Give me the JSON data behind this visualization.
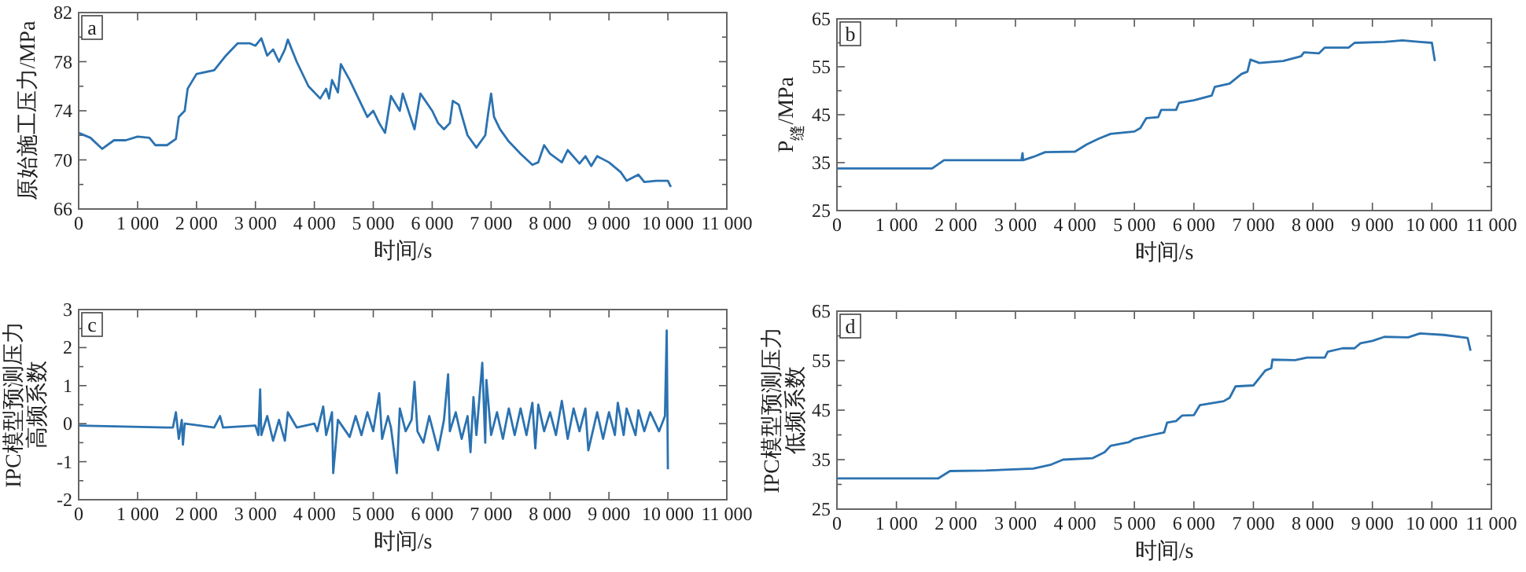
{
  "chart_data": [
    {
      "type": "line",
      "xlabel": "时间/s",
      "ylabel": "原始施工压力/MPa",
      "annotations": [
        "a"
      ],
      "xlim": [
        0,
        11000
      ],
      "ylim": [
        66,
        82
      ],
      "xticks": [
        {
          "value": 0,
          "label": "0"
        },
        {
          "value": 1000,
          "label": "1 000"
        },
        {
          "value": 2000,
          "label": "2 000"
        },
        {
          "value": 3000,
          "label": "3 000"
        },
        {
          "value": 4000,
          "label": "4 000"
        },
        {
          "value": 5000,
          "label": "5 000"
        },
        {
          "value": 6000,
          "label": "6 000"
        },
        {
          "value": 7000,
          "label": "7 000"
        },
        {
          "value": 8000,
          "label": "8 000"
        },
        {
          "value": 9000,
          "label": "9 000"
        },
        {
          "value": 10000,
          "label": "10 000"
        },
        {
          "value": 11000,
          "label": "11 000"
        }
      ],
      "yticks": [
        66,
        {
          "value": 68,
          "label": null
        },
        70,
        {
          "value": 72,
          "label": null
        },
        74,
        {
          "value": 76,
          "label": null
        },
        78,
        {
          "value": 80,
          "label": null
        },
        82
      ],
      "series": [
        {
          "color": "#2b72b0",
          "x": [
            0,
            200,
            400,
            600,
            800,
            1000,
            1200,
            1300,
            1500,
            1650,
            1700,
            1800,
            1850,
            2000,
            2300,
            2500,
            2700,
            2900,
            3000,
            3100,
            3200,
            3300,
            3400,
            3500,
            3550,
            3700,
            3900,
            4100,
            4200,
            4250,
            4300,
            4400,
            4450,
            4600,
            4700,
            4900,
            5000,
            5100,
            5200,
            5300,
            5450,
            5500,
            5700,
            5800,
            6000,
            6100,
            6200,
            6300,
            6350,
            6450,
            6600,
            6750,
            6900,
            6950,
            7000,
            7050,
            7150,
            7300,
            7500,
            7700,
            7800,
            7900,
            8000,
            8200,
            8300,
            8500,
            8600,
            8700,
            8800,
            9000,
            9200,
            9300,
            9500,
            9600,
            9800,
            10000,
            10050
          ],
          "values": [
            72.2,
            71.8,
            70.9,
            71.6,
            71.6,
            71.9,
            71.8,
            71.2,
            71.2,
            71.7,
            73.5,
            74,
            75.8,
            77,
            77.3,
            78.5,
            79.5,
            79.5,
            79.3,
            79.9,
            78.5,
            79,
            78,
            79,
            79.8,
            78,
            76,
            75,
            75.8,
            75,
            76.5,
            75.5,
            77.8,
            76.5,
            75.5,
            73.5,
            74,
            73,
            72.2,
            75.2,
            74,
            75.4,
            72.5,
            75.4,
            74,
            73,
            72.5,
            73,
            74.8,
            74.5,
            72,
            71,
            72,
            73.8,
            75.4,
            73.5,
            72.5,
            71.5,
            70.5,
            69.6,
            69.8,
            71.2,
            70.5,
            69.8,
            70.8,
            69.7,
            70.3,
            69.5,
            70.3,
            69.8,
            69,
            68.3,
            68.8,
            68.2,
            68.3,
            68.3,
            67.8
          ]
        }
      ]
    },
    {
      "type": "line",
      "xlabel": "时间/s",
      "ylabel": "P$_{缝}$/MPa",
      "annotations": [
        "b"
      ],
      "xlim": [
        0,
        11000
      ],
      "ylim": [
        25,
        65
      ],
      "xticks": [
        {
          "value": 0,
          "label": "0"
        },
        {
          "value": 1000,
          "label": "1 000"
        },
        {
          "value": 2000,
          "label": "2 000"
        },
        {
          "value": 3000,
          "label": "3 000"
        },
        {
          "value": 4000,
          "label": "4 000"
        },
        {
          "value": 5000,
          "label": "5 000"
        },
        {
          "value": 6000,
          "label": "6 000"
        },
        {
          "value": 7000,
          "label": "7 000"
        },
        {
          "value": 8000,
          "label": "8 000"
        },
        {
          "value": 9000,
          "label": "9 000"
        },
        {
          "value": 10000,
          "label": "10 000"
        },
        {
          "value": 11000,
          "label": "11 000"
        }
      ],
      "yticks": [
        25,
        {
          "value": 30,
          "label": null
        },
        35,
        {
          "value": 40,
          "label": null
        },
        45,
        {
          "value": 50,
          "label": null
        },
        55,
        {
          "value": 60,
          "label": null
        },
        65
      ],
      "series": [
        {
          "color": "#2b72b0",
          "x": [
            0,
            1600,
            1800,
            3100,
            3120,
            3130,
            3300,
            3500,
            4000,
            4200,
            4400,
            4600,
            5000,
            5100,
            5200,
            5400,
            5450,
            5700,
            5750,
            6000,
            6300,
            6350,
            6600,
            6800,
            6900,
            6950,
            7100,
            7500,
            7800,
            7850,
            8100,
            8200,
            8600,
            8700,
            9200,
            9500,
            9800,
            10000,
            10050
          ],
          "values": [
            33.8,
            33.8,
            35.5,
            35.5,
            37,
            35.5,
            36.2,
            37.2,
            37.3,
            38.8,
            40,
            41,
            41.5,
            42.2,
            44.3,
            44.5,
            46,
            46,
            47.5,
            48,
            49,
            50.8,
            51.5,
            53.5,
            54,
            56.5,
            55.8,
            56.2,
            57.2,
            58,
            57.8,
            59,
            59,
            60,
            60.2,
            60.5,
            60.2,
            60,
            56.2
          ]
        }
      ]
    },
    {
      "type": "line",
      "xlabel": "时间/s",
      "ylabel": "IPC模型预测压力高频系数",
      "annotations": [
        "c"
      ],
      "xlim": [
        0,
        11000
      ],
      "ylim": [
        -2,
        3
      ],
      "xticks": [
        {
          "value": 0,
          "label": "0"
        },
        {
          "value": 1000,
          "label": "1 000"
        },
        {
          "value": 2000,
          "label": "2 000"
        },
        {
          "value": 3000,
          "label": "3 000"
        },
        {
          "value": 4000,
          "label": "4 000"
        },
        {
          "value": 5000,
          "label": "5 000"
        },
        {
          "value": 6000,
          "label": "6 000"
        },
        {
          "value": 7000,
          "label": "7 000"
        },
        {
          "value": 8000,
          "label": "8 000"
        },
        {
          "value": 9000,
          "label": "9 000"
        },
        {
          "value": 10000,
          "label": "10 000"
        },
        {
          "value": 11000,
          "label": "11 000"
        }
      ],
      "yticks": [
        -2,
        {
          "value": -1.5,
          "label": null
        },
        -1,
        {
          "value": -0.5,
          "label": null
        },
        0,
        {
          "value": 0.5,
          "label": null
        },
        1,
        {
          "value": 1.5,
          "label": null
        },
        2,
        {
          "value": 2.5,
          "label": null
        },
        3
      ],
      "series": [
        {
          "color": "#2b72b0",
          "x": [
            0,
            1500,
            1600,
            1650,
            1700,
            1750,
            1770,
            1800,
            2300,
            2400,
            2450,
            3000,
            3050,
            3080,
            3100,
            3200,
            3300,
            3400,
            3500,
            3550,
            3700,
            4000,
            4050,
            4150,
            4200,
            4300,
            4320,
            4400,
            4600,
            4700,
            4800,
            4900,
            5000,
            5100,
            5150,
            5250,
            5300,
            5400,
            5450,
            5550,
            5650,
            5700,
            5750,
            5850,
            5950,
            6100,
            6200,
            6270,
            6300,
            6400,
            6500,
            6600,
            6650,
            6700,
            6750,
            6850,
            6900,
            6920,
            7000,
            7100,
            7200,
            7300,
            7400,
            7500,
            7600,
            7700,
            7750,
            7800,
            7900,
            8000,
            8100,
            8200,
            8300,
            8400,
            8500,
            8600,
            8650,
            8800,
            8900,
            9000,
            9100,
            9150,
            9250,
            9300,
            9450,
            9500,
            9600,
            9700,
            9850,
            9950,
            9980,
            10000
          ],
          "values": [
            -0.05,
            -0.1,
            -0.1,
            0.3,
            -0.4,
            0.1,
            -0.55,
            0,
            -0.1,
            0.2,
            -0.1,
            -0.05,
            -0.3,
            0.9,
            -0.3,
            0.2,
            -0.45,
            0.1,
            -0.45,
            0.3,
            -0.1,
            0,
            -0.2,
            0.45,
            -0.3,
            0.3,
            -1.3,
            0.1,
            -0.35,
            0.2,
            -0.3,
            0.3,
            -0.2,
            0.8,
            -0.4,
            0.2,
            -0.1,
            -1.3,
            0.4,
            -0.2,
            0.1,
            1.1,
            -0.2,
            -0.5,
            0.2,
            -0.7,
            0.1,
            1.3,
            -0.2,
            0.3,
            -0.4,
            0.2,
            -0.75,
            0.7,
            -0.3,
            1.6,
            -0.5,
            1.15,
            -0.3,
            0.3,
            -0.4,
            0.4,
            -0.3,
            0.4,
            -0.3,
            0.55,
            -0.65,
            0.5,
            -0.2,
            0.3,
            -0.3,
            0.6,
            -0.4,
            0.4,
            -0.2,
            0.4,
            -0.7,
            0.3,
            -0.4,
            0.3,
            -0.3,
            0.55,
            -0.3,
            0.4,
            -0.3,
            0.35,
            -0.2,
            0.3,
            -0.2,
            0.2,
            2.45,
            -1.2
          ]
        }
      ]
    },
    {
      "type": "line",
      "xlabel": "时间/s",
      "ylabel": "IPC模型预测压力低频系数",
      "annotations": [
        "d"
      ],
      "xlim": [
        0,
        11000
      ],
      "ylim": [
        25,
        65
      ],
      "xticks": [
        {
          "value": 0,
          "label": "0"
        },
        {
          "value": 1000,
          "label": "1 000"
        },
        {
          "value": 2000,
          "label": "2 000"
        },
        {
          "value": 3000,
          "label": "3 000"
        },
        {
          "value": 4000,
          "label": "4 000"
        },
        {
          "value": 5000,
          "label": "5 000"
        },
        {
          "value": 6000,
          "label": "6 000"
        },
        {
          "value": 7000,
          "label": "7 000"
        },
        {
          "value": 8000,
          "label": "8 000"
        },
        {
          "value": 9000,
          "label": "9 000"
        },
        {
          "value": 10000,
          "label": "10 000"
        },
        {
          "value": 11000,
          "label": "11 000"
        }
      ],
      "yticks": [
        25,
        {
          "value": 30,
          "label": null
        },
        35,
        {
          "value": 40,
          "label": null
        },
        45,
        {
          "value": 50,
          "label": null
        },
        55,
        {
          "value": 60,
          "label": null
        },
        65
      ],
      "series": [
        {
          "color": "#2b72b0",
          "x": [
            0,
            1700,
            1900,
            2500,
            3300,
            3600,
            3800,
            4300,
            4500,
            4600,
            4900,
            5000,
            5300,
            5500,
            5550,
            5700,
            5800,
            6000,
            6100,
            6500,
            6600,
            6700,
            7000,
            7100,
            7200,
            7300,
            7320,
            7700,
            7900,
            8200,
            8250,
            8500,
            8700,
            8800,
            9000,
            9200,
            9600,
            9800,
            10200,
            10600,
            10650
          ],
          "values": [
            31.2,
            31.2,
            32.7,
            32.8,
            33.2,
            34,
            35,
            35.3,
            36.5,
            37.8,
            38.5,
            39.2,
            40,
            40.5,
            42.5,
            42.8,
            43.9,
            44,
            46,
            46.8,
            47.5,
            49.8,
            50,
            51.5,
            53,
            53.5,
            55.2,
            55.1,
            55.6,
            55.6,
            56.8,
            57.5,
            57.5,
            58.5,
            59,
            59.8,
            59.7,
            60.5,
            60.2,
            59.6,
            57
          ]
        }
      ]
    }
  ]
}
